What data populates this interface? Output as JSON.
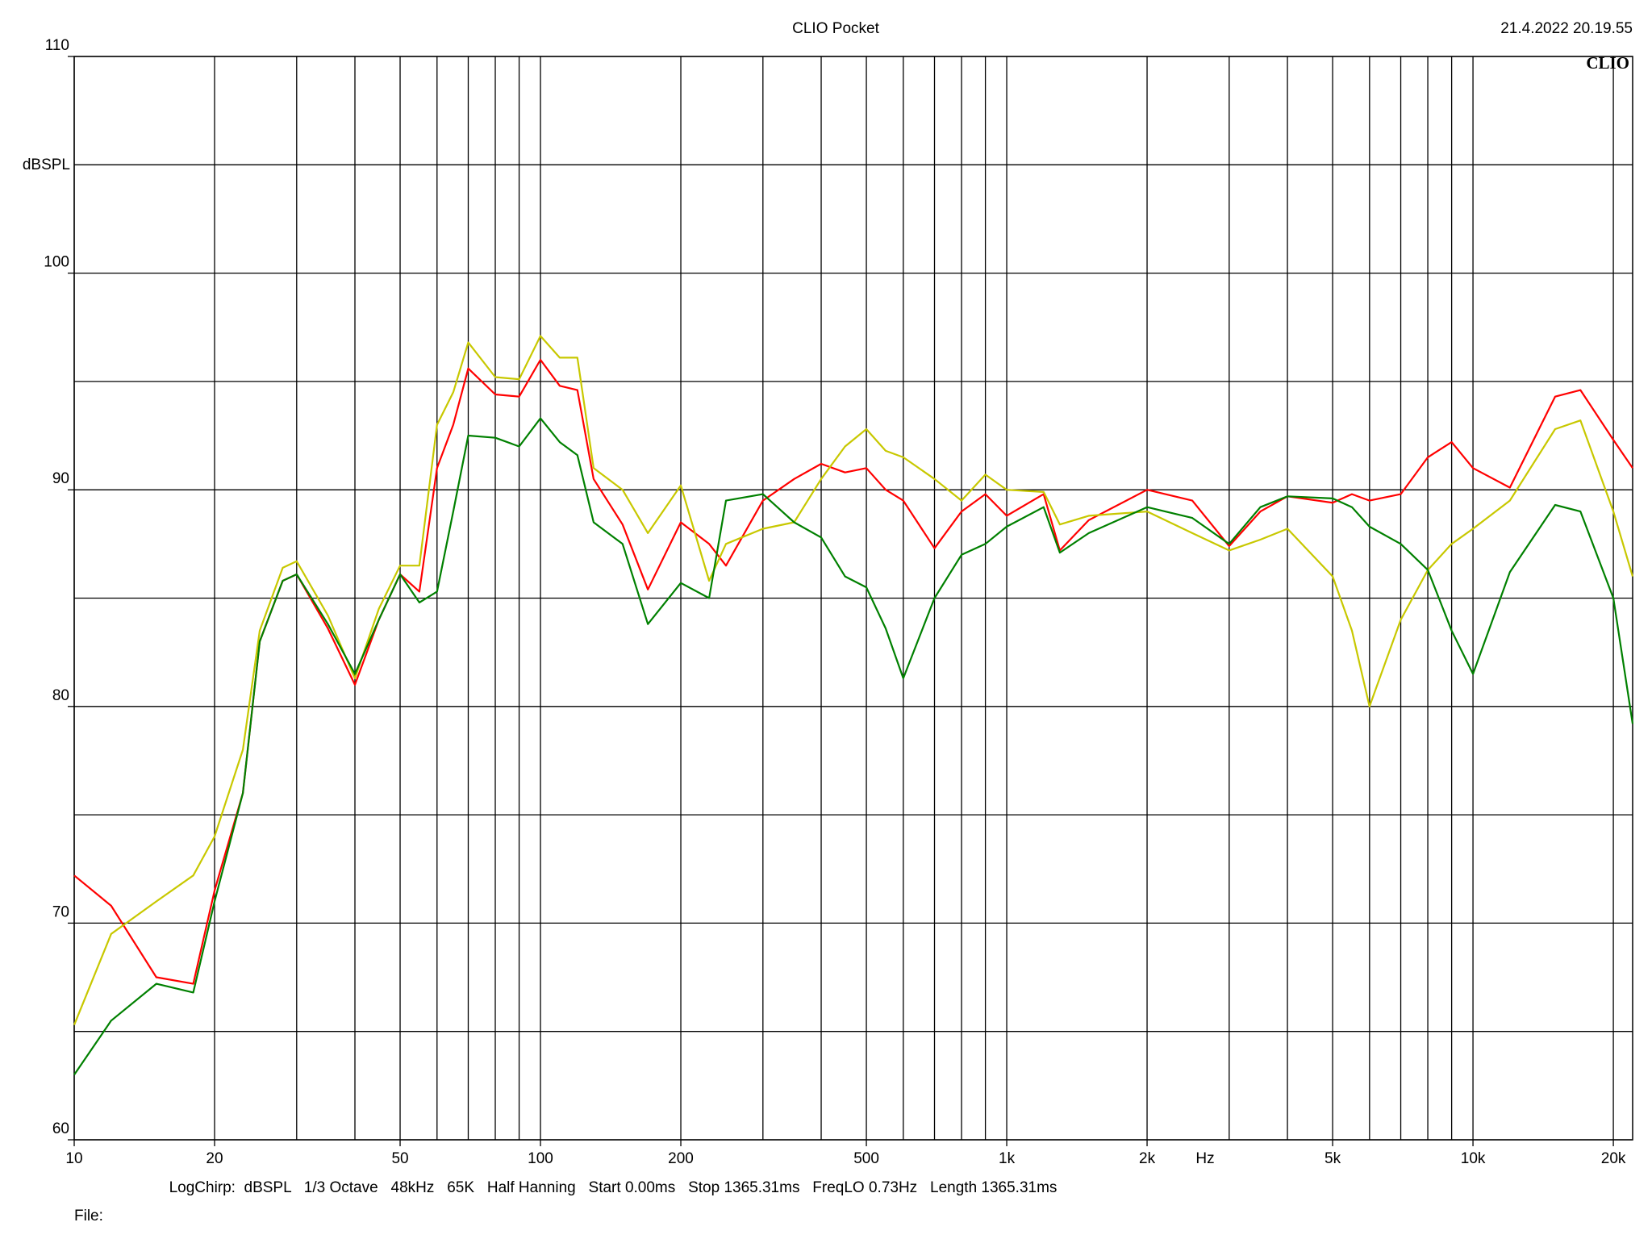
{
  "chart_data": {
    "type": "line",
    "title": "CLIO Pocket",
    "timestamp": "21.4.2022 20.19.55",
    "logo": "CLIO",
    "y_label": "dBSPL",
    "x_label": "Hz",
    "footer": "LogChirp:  dBSPL   1/3 Octave   48kHz   65K   Half Hanning   Start 0.00ms   Stop 1365.31ms   FreqLO 0.73Hz   Length 1365.31ms",
    "file_label": "File:",
    "xscale": "log",
    "xlim": [
      10,
      22000
    ],
    "ylim": [
      60,
      110
    ],
    "yticks": [
      60,
      70,
      80,
      90,
      100,
      110
    ],
    "ygrid": [
      60,
      65,
      70,
      75,
      80,
      85,
      90,
      95,
      100,
      105,
      110
    ],
    "xticks": [
      10,
      20,
      50,
      100,
      200,
      500,
      {
        "value": 1000,
        "label": "1k"
      },
      {
        "value": 2000,
        "label": "2k"
      },
      {
        "value": 5000,
        "label": "5k"
      },
      {
        "value": 10000,
        "label": "10k"
      },
      {
        "value": 20000,
        "label": "20k"
      }
    ],
    "xgrid": [
      10,
      20,
      30,
      40,
      50,
      60,
      70,
      80,
      90,
      100,
      200,
      300,
      400,
      500,
      600,
      700,
      800,
      900,
      1000,
      2000,
      3000,
      4000,
      5000,
      6000,
      7000,
      8000,
      9000,
      10000,
      20000
    ],
    "grid": true,
    "x": [
      10,
      12,
      15,
      18,
      20,
      23,
      25,
      28,
      30,
      35,
      40,
      45,
      50,
      55,
      60,
      65,
      70,
      80,
      90,
      100,
      110,
      120,
      130,
      150,
      170,
      200,
      230,
      250,
      300,
      350,
      400,
      450,
      500,
      550,
      600,
      700,
      800,
      900,
      1000,
      1200,
      1300,
      1500,
      2000,
      2500,
      3000,
      3500,
      4000,
      5000,
      5500,
      6000,
      7000,
      8000,
      9000,
      10000,
      12000,
      15000,
      17000,
      20000,
      22000
    ],
    "series": [
      {
        "name": "red",
        "color": "#ff0000",
        "values": [
          72.2,
          70.8,
          67.5,
          67.2,
          71.5,
          76,
          83,
          85.8,
          86.1,
          83.6,
          81.0,
          84,
          86.1,
          85.3,
          91,
          93,
          95.6,
          94.4,
          94.3,
          96,
          94.8,
          94.6,
          90.5,
          88.4,
          85.4,
          88.5,
          87.5,
          86.5,
          89.5,
          90.5,
          91.2,
          90.8,
          91,
          90.0,
          89.5,
          87.3,
          89,
          89.8,
          88.8,
          89.8,
          87.2,
          88.6,
          90.0,
          89.5,
          87.4,
          89.0,
          89.7,
          89.4,
          89.8,
          89.5,
          89.8,
          91.5,
          92.2,
          91.0,
          90.1,
          94.3,
          94.6,
          92.3,
          91.0
        ]
      },
      {
        "name": "yellow",
        "color": "#c8c800",
        "values": [
          65.3,
          69.5,
          71,
          72.2,
          74,
          78,
          83.5,
          86.4,
          86.7,
          84.2,
          81.3,
          84.5,
          86.5,
          86.5,
          93,
          94.5,
          96.8,
          95.2,
          95.1,
          97.1,
          96.1,
          96.1,
          91.0,
          90.0,
          88.0,
          90.2,
          85.8,
          87.5,
          88.2,
          88.5,
          90.5,
          92.0,
          92.8,
          91.8,
          91.5,
          90.5,
          89.5,
          90.7,
          90.0,
          89.9,
          88.4,
          88.8,
          89.0,
          88.0,
          87.2,
          87.7,
          88.2,
          86.0,
          83.5,
          80.0,
          84.0,
          86.3,
          87.5,
          88.2,
          89.5,
          92.8,
          93.2,
          89.0,
          86.0
        ]
      },
      {
        "name": "green",
        "color": "#008000",
        "values": [
          63.0,
          65.5,
          67.2,
          66.8,
          71,
          76,
          83,
          85.8,
          86.1,
          83.8,
          81.5,
          84,
          86.1,
          84.8,
          85.3,
          89,
          92.5,
          92.4,
          92,
          93.3,
          92.2,
          91.6,
          88.5,
          87.5,
          83.8,
          85.7,
          85,
          89.5,
          89.8,
          88.5,
          87.8,
          86.0,
          85.5,
          83.6,
          81.3,
          85,
          87,
          87.5,
          88.3,
          89.2,
          87.1,
          88.0,
          89.2,
          88.7,
          87.5,
          89.2,
          89.7,
          89.6,
          89.2,
          88.3,
          87.5,
          86.3,
          83.5,
          81.5,
          86.2,
          89.3,
          89.0,
          85.0,
          79.2
        ]
      }
    ]
  }
}
